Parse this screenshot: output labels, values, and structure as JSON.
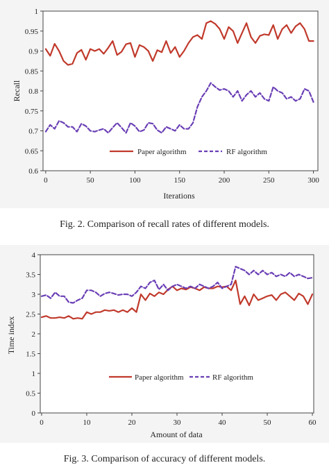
{
  "colors": {
    "paper": "#c0392b",
    "rf": "#6a3fb5"
  },
  "chart_data": [
    {
      "type": "line",
      "xlabel": "Iterations",
      "ylabel": "Recall",
      "xlim": [
        -3,
        305
      ],
      "ylim": [
        0.6,
        1.0
      ],
      "xticks": [
        0,
        50,
        100,
        150,
        200,
        250,
        300
      ],
      "yticks": [
        0.6,
        0.65,
        0.7,
        0.75,
        0.8,
        0.85,
        0.9,
        0.95,
        1
      ],
      "legend": "inside-bottom",
      "series": [
        {
          "name": "Paper algorithm",
          "style": "solid",
          "x": [
            0,
            5,
            10,
            15,
            20,
            25,
            30,
            35,
            40,
            45,
            50,
            55,
            60,
            65,
            70,
            75,
            80,
            85,
            90,
            95,
            100,
            105,
            110,
            115,
            120,
            125,
            130,
            135,
            140,
            145,
            150,
            155,
            160,
            165,
            170,
            175,
            180,
            185,
            190,
            195,
            200,
            205,
            210,
            215,
            220,
            225,
            230,
            235,
            240,
            245,
            250,
            255,
            260,
            265,
            270,
            275,
            280,
            285,
            290,
            295,
            300
          ],
          "y": [
            0.905,
            0.888,
            0.918,
            0.9,
            0.875,
            0.865,
            0.868,
            0.895,
            0.903,
            0.878,
            0.905,
            0.9,
            0.905,
            0.893,
            0.908,
            0.925,
            0.89,
            0.898,
            0.917,
            0.92,
            0.885,
            0.915,
            0.91,
            0.9,
            0.875,
            0.902,
            0.897,
            0.925,
            0.895,
            0.91,
            0.885,
            0.9,
            0.92,
            0.935,
            0.94,
            0.93,
            0.97,
            0.975,
            0.968,
            0.955,
            0.93,
            0.96,
            0.95,
            0.92,
            0.945,
            0.97,
            0.935,
            0.92,
            0.938,
            0.942,
            0.94,
            0.965,
            0.93,
            0.955,
            0.965,
            0.945,
            0.962,
            0.97,
            0.955,
            0.925,
            0.925
          ]
        },
        {
          "name": "RF algorithm",
          "style": "dashed",
          "x": [
            0,
            5,
            10,
            15,
            20,
            25,
            30,
            35,
            40,
            45,
            50,
            55,
            60,
            65,
            70,
            75,
            80,
            85,
            90,
            95,
            100,
            105,
            110,
            115,
            120,
            125,
            130,
            135,
            140,
            145,
            150,
            155,
            160,
            165,
            170,
            175,
            180,
            185,
            190,
            195,
            200,
            205,
            210,
            215,
            220,
            225,
            230,
            235,
            240,
            245,
            250,
            255,
            260,
            265,
            270,
            275,
            280,
            285,
            290,
            295,
            300
          ],
          "y": [
            0.698,
            0.715,
            0.705,
            0.725,
            0.72,
            0.71,
            0.71,
            0.698,
            0.718,
            0.712,
            0.7,
            0.698,
            0.702,
            0.705,
            0.695,
            0.708,
            0.72,
            0.708,
            0.695,
            0.72,
            0.712,
            0.698,
            0.702,
            0.72,
            0.718,
            0.702,
            0.695,
            0.71,
            0.705,
            0.7,
            0.715,
            0.705,
            0.705,
            0.72,
            0.76,
            0.785,
            0.8,
            0.82,
            0.81,
            0.802,
            0.805,
            0.8,
            0.785,
            0.8,
            0.775,
            0.79,
            0.8,
            0.785,
            0.795,
            0.78,
            0.775,
            0.81,
            0.8,
            0.795,
            0.78,
            0.785,
            0.775,
            0.78,
            0.805,
            0.8,
            0.772
          ]
        }
      ]
    },
    {
      "type": "line",
      "xlabel": "Amount of data",
      "ylabel": "Time index",
      "xlim": [
        -0.3,
        60.3
      ],
      "ylim": [
        0,
        4
      ],
      "xticks": [
        0,
        10,
        20,
        30,
        40,
        50,
        60
      ],
      "yticks": [
        0,
        0.5,
        1,
        1.5,
        2,
        2.5,
        3,
        3.5,
        4
      ],
      "legend": "inside-bottom",
      "series": [
        {
          "name": "Paper algorithm",
          "style": "solid",
          "x": [
            0,
            1,
            2,
            3,
            4,
            5,
            6,
            7,
            8,
            9,
            10,
            11,
            12,
            13,
            14,
            15,
            16,
            17,
            18,
            19,
            20,
            21,
            22,
            23,
            24,
            25,
            26,
            27,
            28,
            29,
            30,
            31,
            32,
            33,
            34,
            35,
            36,
            37,
            38,
            39,
            40,
            41,
            42,
            43,
            44,
            45,
            46,
            47,
            48,
            49,
            50,
            51,
            52,
            53,
            54,
            55,
            56,
            57,
            58,
            59,
            60
          ],
          "y": [
            2.42,
            2.45,
            2.4,
            2.4,
            2.42,
            2.4,
            2.45,
            2.38,
            2.4,
            2.38,
            2.55,
            2.5,
            2.55,
            2.55,
            2.6,
            2.58,
            2.6,
            2.55,
            2.6,
            2.55,
            2.65,
            2.55,
            3.0,
            2.85,
            3.02,
            2.95,
            3.05,
            3.0,
            3.12,
            3.2,
            3.1,
            3.15,
            3.12,
            3.18,
            3.15,
            3.1,
            3.18,
            3.15,
            3.15,
            3.2,
            3.18,
            3.2,
            3.1,
            3.35,
            2.75,
            2.95,
            2.72,
            3.0,
            2.85,
            2.9,
            2.95,
            2.98,
            2.85,
            3.0,
            3.05,
            2.95,
            2.85,
            3.02,
            2.95,
            2.75,
            3.0
          ]
        },
        {
          "name": "RF algorithm",
          "style": "dashed",
          "x": [
            0,
            1,
            2,
            3,
            4,
            5,
            6,
            7,
            8,
            9,
            10,
            11,
            12,
            13,
            14,
            15,
            16,
            17,
            18,
            19,
            20,
            21,
            22,
            23,
            24,
            25,
            26,
            27,
            28,
            29,
            30,
            31,
            32,
            33,
            34,
            35,
            36,
            37,
            38,
            39,
            40,
            41,
            42,
            43,
            44,
            45,
            46,
            47,
            48,
            49,
            50,
            51,
            52,
            53,
            54,
            55,
            56,
            57,
            58,
            59,
            60
          ],
          "y": [
            2.95,
            2.98,
            2.9,
            3.05,
            2.95,
            2.95,
            2.8,
            2.78,
            2.85,
            2.9,
            3.1,
            3.1,
            3.05,
            2.95,
            3.02,
            3.05,
            3.02,
            2.98,
            3.0,
            3.0,
            2.95,
            3.05,
            3.2,
            3.15,
            3.3,
            3.35,
            3.12,
            3.25,
            3.1,
            3.2,
            3.25,
            3.2,
            3.15,
            3.2,
            3.15,
            3.25,
            3.2,
            3.15,
            3.2,
            3.3,
            3.15,
            3.2,
            3.25,
            3.7,
            3.65,
            3.6,
            3.5,
            3.6,
            3.5,
            3.6,
            3.5,
            3.55,
            3.45,
            3.5,
            3.45,
            3.55,
            3.45,
            3.5,
            3.45,
            3.4,
            3.42
          ]
        }
      ]
    }
  ],
  "captions": {
    "fig2": "Fig. 2. Comparison of recall rates of different models.",
    "fig3": "Fig. 3. Comparison of accuracy of different models."
  }
}
